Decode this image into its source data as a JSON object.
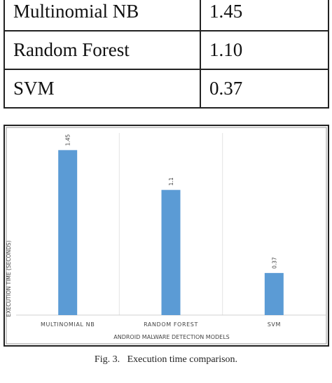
{
  "table": {
    "rows": [
      [
        "Multinomial NB",
        "1.45"
      ],
      [
        "Random Forest",
        "1.10"
      ],
      [
        "SVM",
        "0.37"
      ]
    ]
  },
  "chart_data": {
    "type": "bar",
    "categories": [
      "MULTINOMIAL NB",
      "RANDOM FOREST",
      "SVM"
    ],
    "values": [
      1.45,
      1.1,
      0.37
    ],
    "color": "#5b9bd5",
    "ylabel": "EXECUTION TIME (SECONDS)",
    "xlabel": "ANDROID MALWARE DETECTION MODELS",
    "ylim": [
      0,
      1.6
    ],
    "grid": false
  },
  "caption": "Fig. 3.   Execution time comparison."
}
